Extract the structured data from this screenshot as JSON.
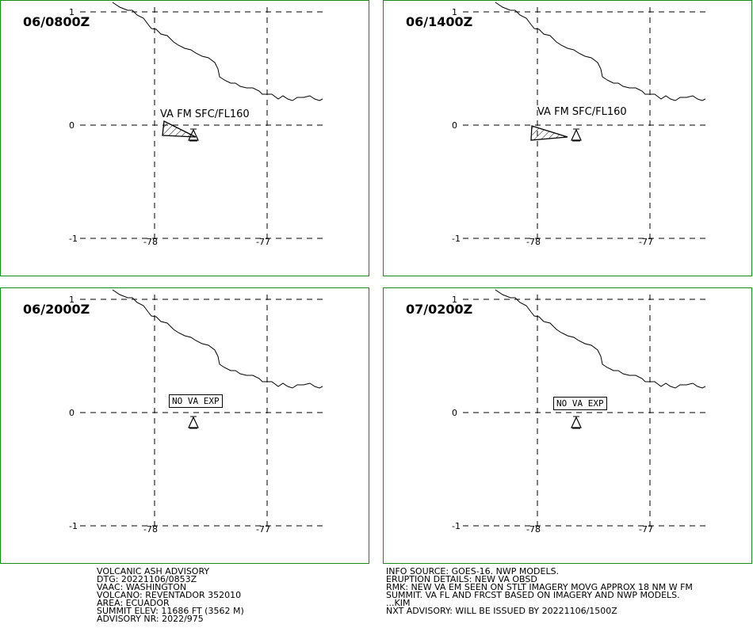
{
  "panels": [
    {
      "time": "06/0800Z",
      "kind": "ash",
      "ash_label": "VA FM SFC/FL160"
    },
    {
      "time": "06/1400Z",
      "kind": "ash",
      "ash_label": "VA FM SFC/FL160"
    },
    {
      "time": "06/2000Z",
      "kind": "none",
      "none_label": "NO VA EXP"
    },
    {
      "time": "07/0200Z",
      "kind": "none",
      "none_label": "NO VA EXP"
    }
  ],
  "grid": {
    "lat_labels": [
      "1",
      "0",
      "-1"
    ],
    "lon_labels": [
      "-78",
      "-77"
    ]
  },
  "advisory_left": [
    "VOLCANIC ASH ADVISORY",
    "DTG: 20221106/0853Z",
    "VAAC: WASHINGTON",
    "VOLCANO: REVENTADOR 352010",
    "AREA: ECUADOR",
    "SUMMIT ELEV: 11686 FT (3562 M)",
    "ADVISORY NR: 2022/975"
  ],
  "advisory_right": [
    "INFO SOURCE: GOES-16. NWP MODELS.",
    "ERUPTION DETAILS: NEW VA OBSD",
    "RMK: NEW VA EM SEEN ON STLT IMAGERY MOVG APPROX 18 NM W FM",
    "SUMMIT. VA FL AND FRCST BASED ON IMAGERY AND NWP MODELS.",
    "...KIM",
    "NXT ADVISORY: WILL BE ISSUED BY 20221106/1500Z"
  ],
  "colors": {
    "frame": "#1a8a1a",
    "ink": "#000000"
  }
}
